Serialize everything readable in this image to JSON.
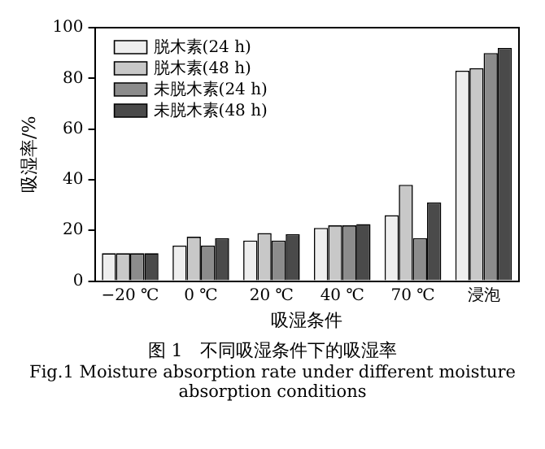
{
  "chart_data": {
    "type": "bar",
    "title": "图 1　不同吸湿条件下的吸湿率",
    "subtitle": "Fig.1 Moisture absorption rate under different moisture absorption conditions",
    "xlabel": "吸湿条件",
    "ylabel": "吸湿率/%",
    "categories": [
      "−20 ℃",
      "0 ℃",
      "20 ℃",
      "40 ℃",
      "70 ℃",
      "浸泡"
    ],
    "series": [
      {
        "name": "脱木素(24 h)",
        "color": "#eeeeee",
        "values": [
          11,
          14,
          16,
          21,
          26,
          83
        ]
      },
      {
        "name": "脱木素(48 h)",
        "color": "#c8c8c8",
        "values": [
          11,
          17.5,
          19,
          22,
          38,
          84
        ]
      },
      {
        "name": "未脱木素(24 h)",
        "color": "#8c8c8c",
        "values": [
          11,
          14,
          16,
          22,
          17,
          90
        ]
      },
      {
        "name": "未脱木素(48 h)",
        "color": "#4a4a4a",
        "values": [
          11,
          17,
          18.5,
          22.5,
          31,
          92
        ]
      }
    ],
    "ylim": [
      0,
      100
    ],
    "yticks": [
      0,
      20,
      40,
      60,
      80,
      100
    ],
    "grid": false,
    "legend": "top left"
  }
}
